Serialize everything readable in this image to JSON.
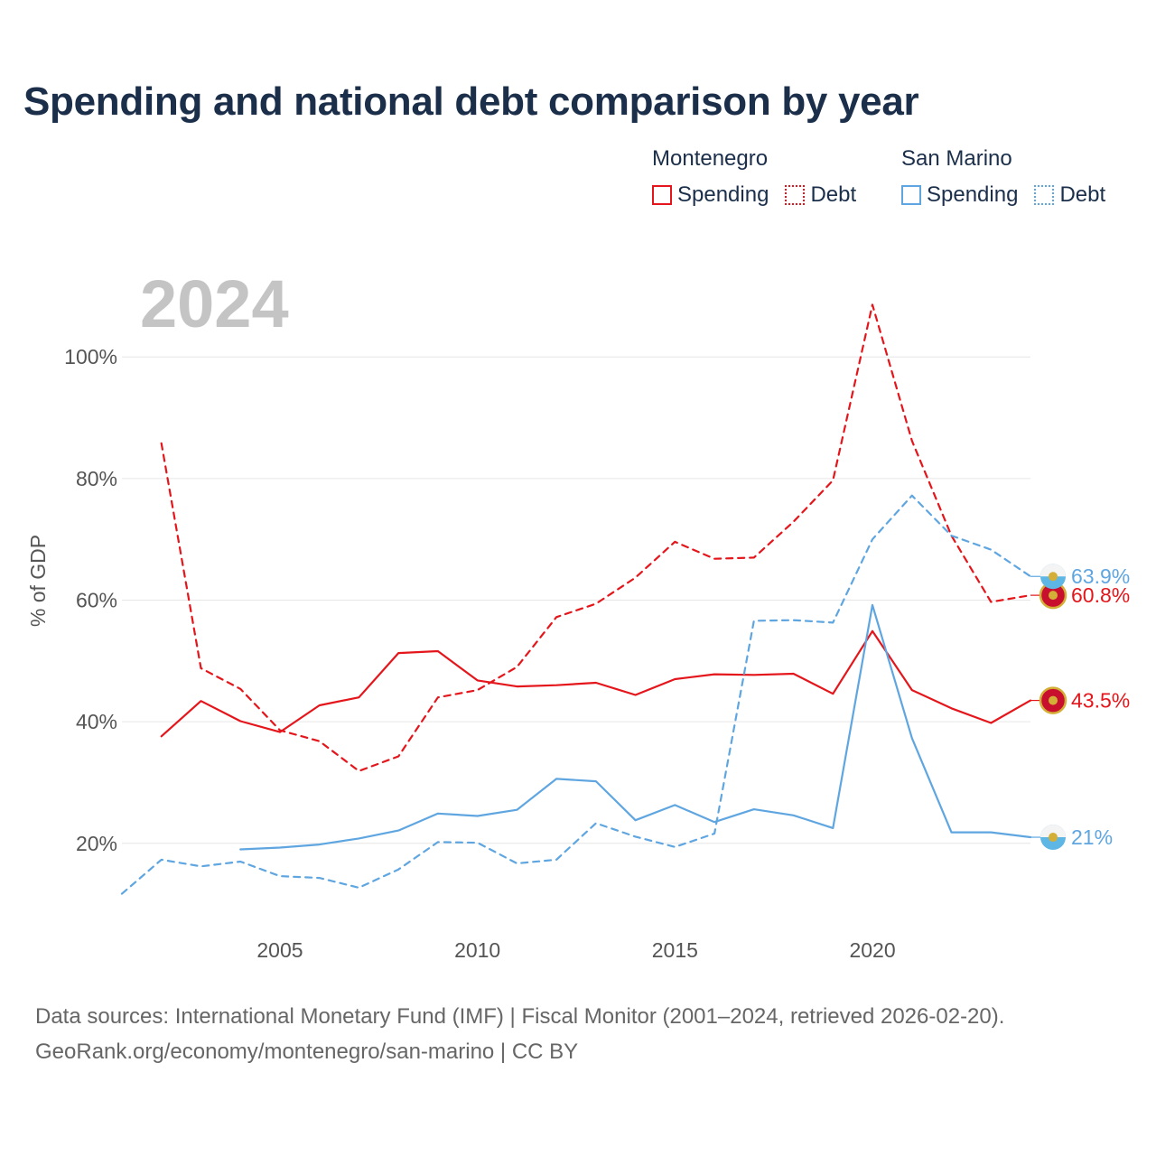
{
  "title": "Spending and national debt comparison by year",
  "legend": {
    "groups": [
      {
        "name": "Montenegro",
        "spending": "Spending",
        "debt": "Debt"
      },
      {
        "name": "San Marino",
        "spending": "Spending",
        "debt": "Debt"
      }
    ]
  },
  "source": {
    "line1": "Data sources: International Monetary Fund (IMF) | Fiscal Monitor (2001–2024, retrieved 2026-02-20).",
    "line2": "GeoRank.org/economy/montenegro/san-marino | CC BY"
  },
  "colors": {
    "montenegro": "#e4161b",
    "san_marino": "#5fa6e1",
    "grid": "#e6e6e6",
    "year_label": "#c4c4c4"
  },
  "chart_data": {
    "type": "line",
    "title": "Spending and national debt comparison by year",
    "year_label": "2024",
    "ylabel": "% of GDP",
    "xlabel": "",
    "xlim": [
      2001,
      2024
    ],
    "ylim": [
      6,
      114
    ],
    "x_ticks": [
      2005,
      2010,
      2015,
      2020
    ],
    "y_ticks": [
      20,
      40,
      60,
      80,
      100
    ],
    "y_tick_labels": [
      "20%",
      "40%",
      "60%",
      "80%",
      "100%"
    ],
    "grid": true,
    "legend_position": "top-right",
    "series": [
      {
        "name": "Montenegro Spending",
        "country": "montenegro",
        "style": "solid",
        "x": [
          2002,
          2003,
          2004,
          2005,
          2006,
          2007,
          2008,
          2009,
          2010,
          2011,
          2012,
          2013,
          2014,
          2015,
          2016,
          2017,
          2018,
          2019,
          2020,
          2021,
          2022,
          2023,
          2024
        ],
        "values": [
          37.6,
          43.4,
          40.1,
          38.3,
          42.7,
          44.0,
          51.3,
          51.6,
          46.8,
          45.8,
          46.0,
          46.4,
          44.4,
          47.0,
          47.8,
          47.7,
          47.9,
          44.6,
          54.9,
          45.2,
          42.2,
          39.8,
          43.5
        ],
        "end_label": "43.5%"
      },
      {
        "name": "Montenegro Debt",
        "country": "montenegro",
        "style": "dashed",
        "x": [
          2002,
          2003,
          2004,
          2005,
          2006,
          2007,
          2008,
          2009,
          2010,
          2011,
          2012,
          2013,
          2014,
          2015,
          2016,
          2017,
          2018,
          2019,
          2020,
          2021,
          2022,
          2023,
          2024
        ],
        "values": [
          85.8,
          48.8,
          45.4,
          38.6,
          36.8,
          31.9,
          34.3,
          44.0,
          45.2,
          49.0,
          57.2,
          59.4,
          63.7,
          69.6,
          66.8,
          67.0,
          72.9,
          79.7,
          108.6,
          86.2,
          70.6,
          59.7,
          60.8
        ],
        "end_label": "60.8%"
      },
      {
        "name": "San Marino Spending",
        "country": "san_marino",
        "style": "solid",
        "x": [
          2004,
          2005,
          2006,
          2007,
          2008,
          2009,
          2010,
          2011,
          2012,
          2013,
          2014,
          2015,
          2016,
          2017,
          2018,
          2019,
          2020,
          2021,
          2022,
          2023,
          2024
        ],
        "values": [
          19.0,
          19.3,
          19.8,
          20.8,
          22.1,
          24.9,
          24.5,
          25.5,
          30.6,
          30.2,
          23.8,
          26.3,
          23.5,
          25.6,
          24.6,
          22.5,
          59.2,
          37.3,
          21.8,
          21.8,
          21.0
        ],
        "end_label": "21%"
      },
      {
        "name": "San Marino Debt",
        "country": "san_marino",
        "style": "dashed",
        "x": [
          2001,
          2002,
          2003,
          2004,
          2005,
          2006,
          2007,
          2008,
          2009,
          2010,
          2011,
          2012,
          2013,
          2014,
          2015,
          2016,
          2017,
          2018,
          2019,
          2020,
          2021,
          2022,
          2023,
          2024
        ],
        "values": [
          11.7,
          17.3,
          16.2,
          17.0,
          14.6,
          14.3,
          12.7,
          15.7,
          20.2,
          20.1,
          16.7,
          17.3,
          23.3,
          21.1,
          19.4,
          21.6,
          56.6,
          56.7,
          56.3,
          70.0,
          77.2,
          70.6,
          68.3,
          63.9
        ],
        "end_label": "63.9%"
      }
    ]
  }
}
